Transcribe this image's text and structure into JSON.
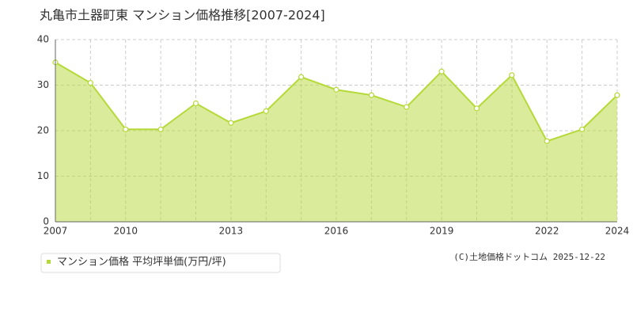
{
  "chart_data": {
    "type": "area",
    "title": "丸亀市土器町東 マンション価格推移[2007-2024]",
    "categories": [
      "2007",
      null,
      "2010",
      null,
      null,
      "2013",
      null,
      null,
      "2016",
      null,
      null,
      "2019",
      null,
      null,
      "2022",
      null,
      "2024"
    ],
    "series": [
      {
        "name": "マンション価格 平均坪単価(万円/坪)",
        "color": "#b5d938",
        "values": [
          35,
          30.5,
          20.3,
          20.3,
          26,
          21.7,
          24.3,
          31.8,
          29,
          27.8,
          25.2,
          33,
          24.9,
          32.2,
          17.7,
          20.3,
          27.8
        ]
      }
    ],
    "ylim": [
      0,
      40
    ],
    "yticks": [
      0,
      10,
      20,
      30,
      40
    ],
    "grid": true,
    "copyright": "(C)土地価格ドットコム 2025-12-22"
  }
}
